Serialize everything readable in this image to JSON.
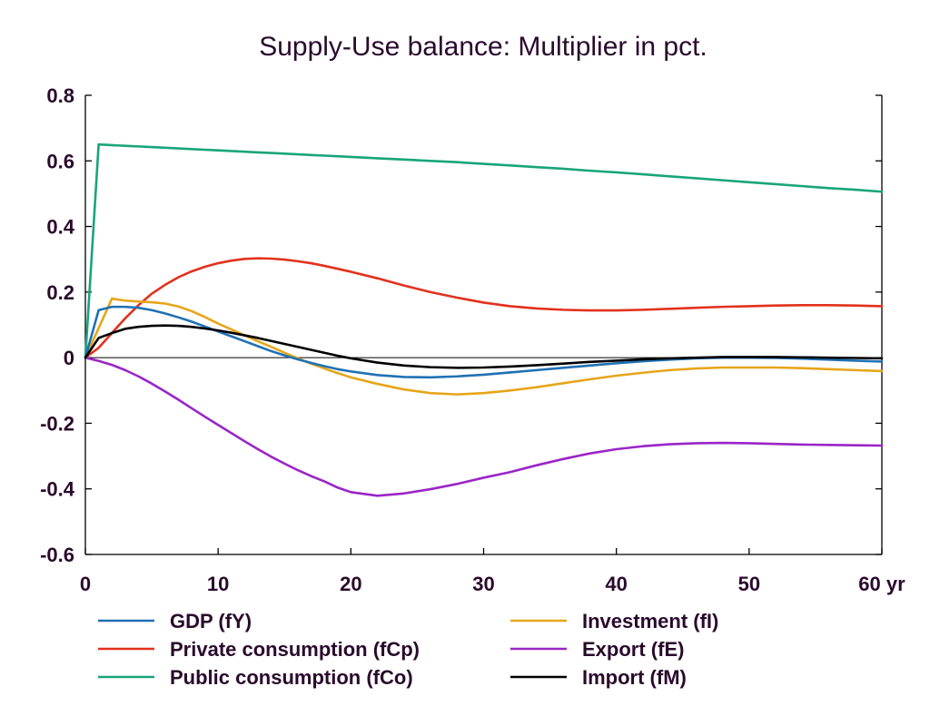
{
  "chart_data": {
    "type": "line",
    "title": "Supply-Use balance: Multiplier in pct.",
    "xlim": [
      0,
      60
    ],
    "ylim": [
      -0.6,
      0.8
    ],
    "xticks": [
      0,
      10,
      20,
      30,
      40,
      50,
      60
    ],
    "x_tick_labels": [
      "0",
      "10",
      "20",
      "30",
      "40",
      "50",
      "60 yr"
    ],
    "yticks": [
      0.8,
      0.6,
      0.4,
      0.2,
      0,
      -0.2,
      -0.4,
      -0.6
    ],
    "y_tick_labels": [
      "0.8",
      "0.6",
      "0.4",
      "0.2",
      "0",
      "-0.2",
      "-0.4",
      "-0.6"
    ],
    "grid": false,
    "zero_line": true,
    "legend": {
      "position": "bottom",
      "columns": 2
    },
    "x": [
      0,
      1,
      2,
      3,
      4,
      5,
      6,
      7,
      8,
      9,
      10,
      11,
      12,
      13,
      14,
      15,
      16,
      17,
      18,
      19,
      20,
      22,
      24,
      26,
      28,
      30,
      32,
      34,
      36,
      38,
      40,
      42,
      44,
      46,
      48,
      50,
      52,
      54,
      56,
      58,
      60
    ],
    "series": [
      {
        "name": "GDP (fY)",
        "color": "#2071b3",
        "y": [
          0,
          0.145,
          0.155,
          0.155,
          0.152,
          0.145,
          0.135,
          0.123,
          0.11,
          0.095,
          0.08,
          0.065,
          0.05,
          0.035,
          0.02,
          0.007,
          -0.005,
          -0.016,
          -0.026,
          -0.035,
          -0.042,
          -0.053,
          -0.059,
          -0.06,
          -0.057,
          -0.052,
          -0.045,
          -0.038,
          -0.031,
          -0.024,
          -0.017,
          -0.011,
          -0.006,
          -0.002,
          0.0,
          0.0,
          -0.001,
          -0.003,
          -0.006,
          -0.009,
          -0.012
        ]
      },
      {
        "name": "Private consumption (fCp)",
        "color": "#e2311d",
        "y": [
          0,
          0.03,
          0.075,
          0.12,
          0.16,
          0.195,
          0.222,
          0.245,
          0.263,
          0.277,
          0.288,
          0.296,
          0.301,
          0.303,
          0.302,
          0.299,
          0.294,
          0.288,
          0.28,
          0.271,
          0.262,
          0.242,
          0.22,
          0.2,
          0.183,
          0.168,
          0.157,
          0.15,
          0.146,
          0.144,
          0.144,
          0.146,
          0.149,
          0.152,
          0.155,
          0.157,
          0.159,
          0.16,
          0.16,
          0.159,
          0.157
        ]
      },
      {
        "name": "Public consumption (fCo)",
        "color": "#18a57b",
        "y": [
          0,
          0.65,
          0.648,
          0.646,
          0.644,
          0.642,
          0.64,
          0.638,
          0.636,
          0.634,
          0.632,
          0.63,
          0.628,
          0.626,
          0.624,
          0.622,
          0.62,
          0.618,
          0.616,
          0.614,
          0.612,
          0.608,
          0.604,
          0.6,
          0.596,
          0.591,
          0.586,
          0.581,
          0.576,
          0.57,
          0.565,
          0.559,
          0.553,
          0.547,
          0.541,
          0.535,
          0.529,
          0.523,
          0.517,
          0.512,
          0.506
        ]
      },
      {
        "name": "Investment (fI)",
        "color": "#e6a61a",
        "y": [
          0,
          0.09,
          0.18,
          0.174,
          0.171,
          0.169,
          0.165,
          0.156,
          0.142,
          0.124,
          0.104,
          0.086,
          0.068,
          0.05,
          0.033,
          0.015,
          -0.002,
          -0.018,
          -0.033,
          -0.047,
          -0.06,
          -0.08,
          -0.097,
          -0.108,
          -0.112,
          -0.108,
          -0.1,
          -0.09,
          -0.078,
          -0.066,
          -0.055,
          -0.046,
          -0.038,
          -0.033,
          -0.03,
          -0.03,
          -0.03,
          -0.032,
          -0.035,
          -0.038,
          -0.041
        ]
      },
      {
        "name": "Export (fE)",
        "color": "#9a25c7",
        "y": [
          0,
          -0.01,
          -0.022,
          -0.038,
          -0.057,
          -0.079,
          -0.103,
          -0.128,
          -0.154,
          -0.18,
          -0.205,
          -0.23,
          -0.255,
          -0.279,
          -0.302,
          -0.323,
          -0.343,
          -0.361,
          -0.377,
          -0.396,
          -0.41,
          -0.421,
          -0.414,
          -0.401,
          -0.385,
          -0.366,
          -0.349,
          -0.328,
          -0.309,
          -0.292,
          -0.279,
          -0.27,
          -0.264,
          -0.261,
          -0.26,
          -0.261,
          -0.263,
          -0.265,
          -0.266,
          -0.267,
          -0.268
        ]
      },
      {
        "name": "Import (fM)",
        "color": "#000000",
        "y": [
          0,
          0.06,
          0.075,
          0.088,
          0.094,
          0.097,
          0.098,
          0.097,
          0.094,
          0.089,
          0.083,
          0.076,
          0.068,
          0.06,
          0.051,
          0.042,
          0.033,
          0.024,
          0.015,
          0.006,
          -0.002,
          -0.015,
          -0.024,
          -0.029,
          -0.031,
          -0.03,
          -0.027,
          -0.023,
          -0.018,
          -0.013,
          -0.009,
          -0.005,
          -0.002,
          0.0,
          0.002,
          0.002,
          0.002,
          0.001,
          0.0,
          -0.001,
          -0.002
        ]
      }
    ]
  },
  "colors": {
    "text": "#2a0a2c",
    "axis": "#000000"
  }
}
